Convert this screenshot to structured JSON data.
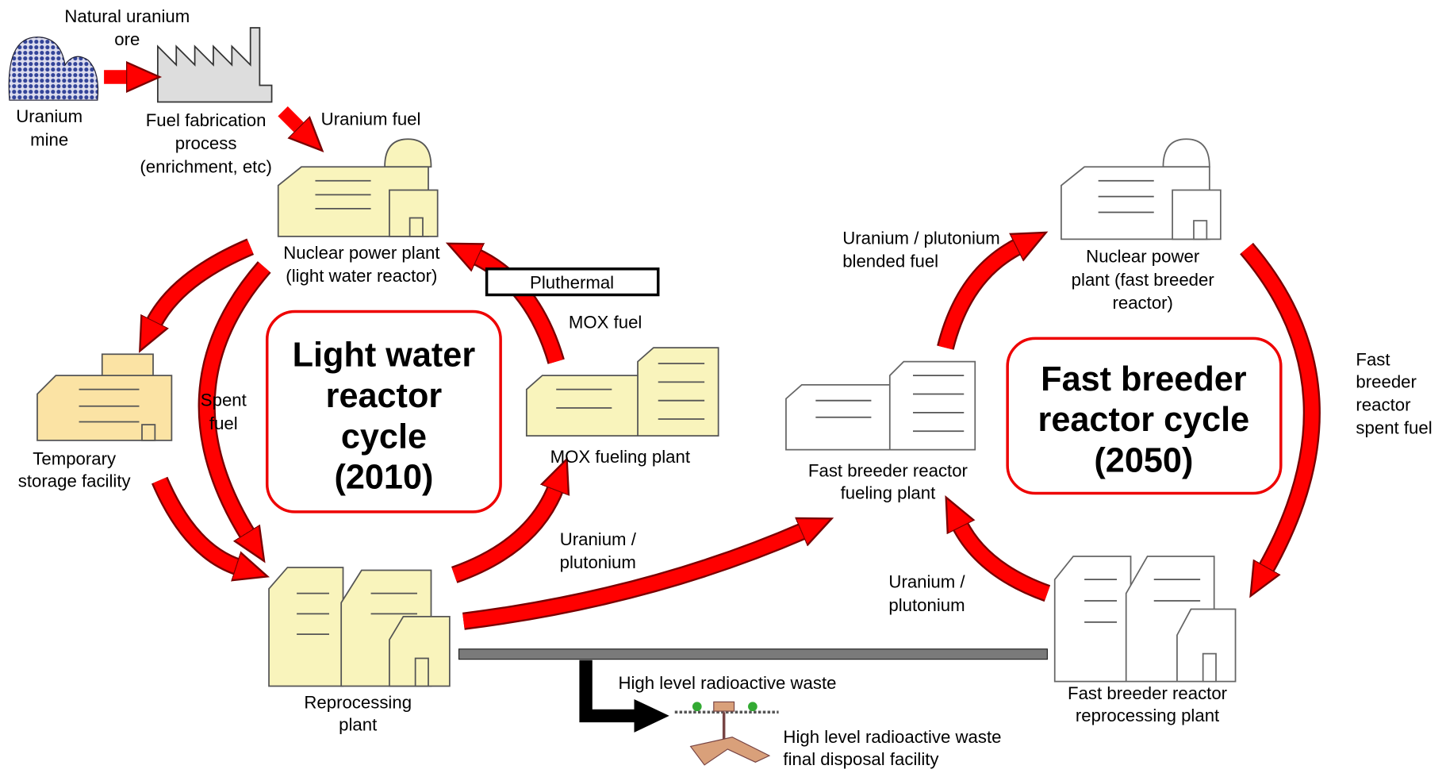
{
  "labels": {
    "natural_uranium_ore": [
      "Natural uranium",
      "ore"
    ],
    "uranium_mine": [
      "Uranium",
      "mine"
    ],
    "fuel_fabrication": [
      "Fuel fabrication",
      "process",
      "(enrichment, etc)"
    ],
    "uranium_fuel": "Uranium fuel",
    "lwr_plant": [
      "Nuclear power plant",
      "(light  water reactor)"
    ],
    "pluthermal": "Pluthermal",
    "mox_fuel": "MOX fuel",
    "lwr_cycle": [
      "Light water",
      "reactor",
      "cycle",
      "(2010)"
    ],
    "spent_fuel": [
      "Spent",
      "fuel"
    ],
    "temporary_storage": [
      "Temporary",
      "storage facility"
    ],
    "mox_fueling_plant": "MOX fueling plant",
    "lwr_uranium_plutonium": [
      "Uranium /",
      "plutonium"
    ],
    "reprocessing_plant": [
      "Reprocessing",
      "plant"
    ],
    "high_level_waste": "High level radioactive waste",
    "final_disposal": [
      "High level radioactive waste",
      "final disposal facility"
    ],
    "blended_fuel": [
      "Uranium / plutonium",
      "blended fuel"
    ],
    "fbr_plant": [
      "Nuclear power",
      "plant (fast breeder",
      "reactor)"
    ],
    "fbr_cycle": [
      "Fast breeder",
      "reactor cycle",
      "(2050)"
    ],
    "fbr_spent_fuel": [
      "Fast",
      "breeder",
      "reactor",
      "spent fuel"
    ],
    "fbr_fueling_plant": [
      "Fast breeder reactor",
      "fueling plant"
    ],
    "fbr_uranium_plutonium": [
      "Uranium /",
      "plutonium"
    ],
    "fbr_reprocessing_plant": [
      "Fast breeder reactor",
      "reprocessing plant"
    ]
  }
}
